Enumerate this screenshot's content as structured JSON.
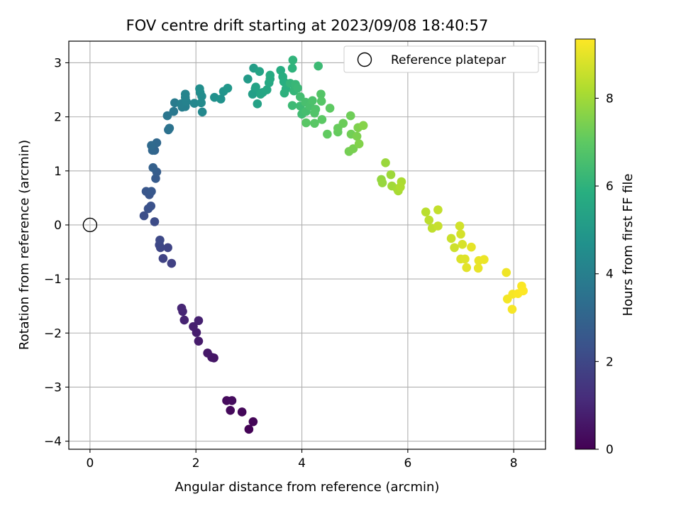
{
  "chart_data": {
    "type": "scatter",
    "title": "FOV centre drift starting at 2023/09/08 18:40:57",
    "xlabel": "Angular distance from reference (arcmin)",
    "ylabel": "Rotation from reference (arcmin)",
    "xlim": [
      -0.4,
      8.6
    ],
    "ylim": [
      -4.15,
      3.4
    ],
    "xticks": [
      0,
      2,
      4,
      6,
      8
    ],
    "yticks": [
      -4,
      -3,
      -2,
      -1,
      0,
      1,
      2,
      3
    ],
    "xtick_labels": [
      "0",
      "2",
      "4",
      "6",
      "8"
    ],
    "ytick_labels": [
      "−4",
      "−3",
      "−2",
      "−1",
      "0",
      "1",
      "2",
      "3"
    ],
    "grid": true,
    "legend": {
      "placement": "top-right",
      "label": "Reference platepar"
    },
    "reference_point": {
      "x": 0,
      "y": 0
    },
    "colormap": "viridis",
    "colorbar": {
      "label": "Hours from first FF file",
      "min": 0,
      "max": 9.35,
      "ticks": [
        0,
        2,
        4,
        6,
        8
      ],
      "tick_labels": [
        "0",
        "2",
        "4",
        "6",
        "8"
      ]
    },
    "points": [
      {
        "x": 3.0,
        "y": -3.78,
        "c": 0.05
      },
      {
        "x": 3.08,
        "y": -3.64,
        "c": 0.1
      },
      {
        "x": 2.87,
        "y": -3.46,
        "c": 0.15
      },
      {
        "x": 2.65,
        "y": -3.43,
        "c": 0.2
      },
      {
        "x": 2.58,
        "y": -3.25,
        "c": 0.25
      },
      {
        "x": 2.68,
        "y": -3.25,
        "c": 0.3
      },
      {
        "x": 2.34,
        "y": -2.46,
        "c": 0.5
      },
      {
        "x": 2.3,
        "y": -2.45,
        "c": 0.55
      },
      {
        "x": 2.22,
        "y": -2.37,
        "c": 0.6
      },
      {
        "x": 2.05,
        "y": -2.15,
        "c": 0.7
      },
      {
        "x": 2.01,
        "y": -1.99,
        "c": 0.75
      },
      {
        "x": 1.95,
        "y": -1.88,
        "c": 0.8
      },
      {
        "x": 2.05,
        "y": -1.77,
        "c": 0.85
      },
      {
        "x": 1.78,
        "y": -1.76,
        "c": 0.9
      },
      {
        "x": 1.75,
        "y": -1.6,
        "c": 0.95
      },
      {
        "x": 1.73,
        "y": -1.54,
        "c": 1.0
      },
      {
        "x": 1.54,
        "y": -0.71,
        "c": 1.8
      },
      {
        "x": 1.38,
        "y": -0.62,
        "c": 1.85
      },
      {
        "x": 1.47,
        "y": -0.42,
        "c": 1.9
      },
      {
        "x": 1.33,
        "y": -0.42,
        "c": 1.95
      },
      {
        "x": 1.31,
        "y": -0.37,
        "c": 2.0
      },
      {
        "x": 1.32,
        "y": -0.28,
        "c": 2.05
      },
      {
        "x": 1.22,
        "y": 0.06,
        "c": 2.15
      },
      {
        "x": 1.02,
        "y": 0.17,
        "c": 2.2
      },
      {
        "x": 1.1,
        "y": 0.3,
        "c": 2.3
      },
      {
        "x": 1.15,
        "y": 0.35,
        "c": 2.35
      },
      {
        "x": 1.12,
        "y": 0.56,
        "c": 2.45
      },
      {
        "x": 1.06,
        "y": 0.62,
        "c": 2.5
      },
      {
        "x": 1.16,
        "y": 0.62,
        "c": 2.55
      },
      {
        "x": 1.24,
        "y": 0.86,
        "c": 2.65
      },
      {
        "x": 1.26,
        "y": 0.98,
        "c": 2.75
      },
      {
        "x": 1.19,
        "y": 1.06,
        "c": 2.85
      },
      {
        "x": 1.22,
        "y": 1.38,
        "c": 3.0
      },
      {
        "x": 1.18,
        "y": 1.38,
        "c": 3.05
      },
      {
        "x": 1.26,
        "y": 1.52,
        "c": 3.15
      },
      {
        "x": 1.16,
        "y": 1.47,
        "c": 3.2
      },
      {
        "x": 1.48,
        "y": 1.76,
        "c": 3.45
      },
      {
        "x": 1.5,
        "y": 1.79,
        "c": 3.55
      },
      {
        "x": 1.46,
        "y": 2.02,
        "c": 3.65
      },
      {
        "x": 1.58,
        "y": 2.1,
        "c": 3.75
      },
      {
        "x": 1.6,
        "y": 2.26,
        "c": 3.85
      },
      {
        "x": 1.74,
        "y": 2.18,
        "c": 3.95
      },
      {
        "x": 1.8,
        "y": 2.19,
        "c": 4.0
      },
      {
        "x": 1.72,
        "y": 2.24,
        "c": 4.05
      },
      {
        "x": 1.82,
        "y": 2.28,
        "c": 4.1
      },
      {
        "x": 1.8,
        "y": 2.36,
        "c": 4.15
      },
      {
        "x": 1.8,
        "y": 2.42,
        "c": 4.2
      },
      {
        "x": 1.97,
        "y": 2.25,
        "c": 4.3
      },
      {
        "x": 2.12,
        "y": 2.09,
        "c": 4.35
      },
      {
        "x": 2.1,
        "y": 2.26,
        "c": 4.4
      },
      {
        "x": 2.11,
        "y": 2.38,
        "c": 4.45
      },
      {
        "x": 2.08,
        "y": 2.45,
        "c": 4.5
      },
      {
        "x": 2.07,
        "y": 2.52,
        "c": 4.55
      },
      {
        "x": 2.35,
        "y": 2.36,
        "c": 4.65
      },
      {
        "x": 2.47,
        "y": 2.33,
        "c": 4.7
      },
      {
        "x": 2.52,
        "y": 2.47,
        "c": 4.8
      },
      {
        "x": 2.6,
        "y": 2.53,
        "c": 4.9
      },
      {
        "x": 2.98,
        "y": 2.7,
        "c": 5.05
      },
      {
        "x": 3.09,
        "y": 2.9,
        "c": 5.15
      },
      {
        "x": 3.07,
        "y": 2.42,
        "c": 5.2
      },
      {
        "x": 3.12,
        "y": 2.52,
        "c": 5.25
      },
      {
        "x": 3.16,
        "y": 2.24,
        "c": 5.3
      },
      {
        "x": 3.13,
        "y": 2.55,
        "c": 5.35
      },
      {
        "x": 3.2,
        "y": 2.84,
        "c": 5.4
      },
      {
        "x": 3.26,
        "y": 2.45,
        "c": 5.45
      },
      {
        "x": 3.22,
        "y": 2.42,
        "c": 5.5
      },
      {
        "x": 3.34,
        "y": 2.5,
        "c": 5.55
      },
      {
        "x": 3.38,
        "y": 2.63,
        "c": 5.6
      },
      {
        "x": 3.4,
        "y": 2.7,
        "c": 5.65
      },
      {
        "x": 3.4,
        "y": 2.77,
        "c": 5.7
      },
      {
        "x": 3.6,
        "y": 2.86,
        "c": 5.75
      },
      {
        "x": 3.64,
        "y": 2.74,
        "c": 5.8
      },
      {
        "x": 3.66,
        "y": 2.65,
        "c": 5.85
      },
      {
        "x": 3.7,
        "y": 2.52,
        "c": 5.9
      },
      {
        "x": 3.67,
        "y": 2.44,
        "c": 5.95
      },
      {
        "x": 3.82,
        "y": 2.9,
        "c": 6.0
      },
      {
        "x": 3.83,
        "y": 3.05,
        "c": 6.05
      },
      {
        "x": 3.78,
        "y": 2.62,
        "c": 6.1
      },
      {
        "x": 3.85,
        "y": 2.48,
        "c": 6.15
      },
      {
        "x": 3.88,
        "y": 2.6,
        "c": 6.2
      },
      {
        "x": 3.92,
        "y": 2.53,
        "c": 6.25
      },
      {
        "x": 3.82,
        "y": 2.21,
        "c": 6.3
      },
      {
        "x": 4.31,
        "y": 2.94,
        "c": 6.3
      },
      {
        "x": 3.97,
        "y": 2.2,
        "c": 6.35
      },
      {
        "x": 4.0,
        "y": 2.05,
        "c": 6.4
      },
      {
        "x": 3.97,
        "y": 2.37,
        "c": 6.45
      },
      {
        "x": 4.08,
        "y": 2.1,
        "c": 6.5
      },
      {
        "x": 4.07,
        "y": 2.27,
        "c": 6.55
      },
      {
        "x": 4.15,
        "y": 2.2,
        "c": 6.6
      },
      {
        "x": 4.2,
        "y": 2.3,
        "c": 6.65
      },
      {
        "x": 4.26,
        "y": 2.14,
        "c": 6.7
      },
      {
        "x": 4.24,
        "y": 2.07,
        "c": 6.75
      },
      {
        "x": 4.36,
        "y": 2.42,
        "c": 6.8
      },
      {
        "x": 4.37,
        "y": 2.29,
        "c": 6.85
      },
      {
        "x": 4.08,
        "y": 1.89,
        "c": 6.9
      },
      {
        "x": 4.24,
        "y": 1.88,
        "c": 6.9
      },
      {
        "x": 4.38,
        "y": 1.95,
        "c": 6.95
      },
      {
        "x": 4.53,
        "y": 2.16,
        "c": 7.0
      },
      {
        "x": 4.48,
        "y": 1.68,
        "c": 7.05
      },
      {
        "x": 4.68,
        "y": 1.72,
        "c": 7.1
      },
      {
        "x": 4.68,
        "y": 1.79,
        "c": 7.15
      },
      {
        "x": 4.78,
        "y": 1.88,
        "c": 7.2
      },
      {
        "x": 4.92,
        "y": 2.02,
        "c": 7.25
      },
      {
        "x": 4.93,
        "y": 1.68,
        "c": 7.3
      },
      {
        "x": 4.89,
        "y": 1.36,
        "c": 7.35
      },
      {
        "x": 4.97,
        "y": 1.41,
        "c": 7.4
      },
      {
        "x": 5.04,
        "y": 1.64,
        "c": 7.45
      },
      {
        "x": 5.06,
        "y": 1.8,
        "c": 7.5
      },
      {
        "x": 5.08,
        "y": 1.5,
        "c": 7.55
      },
      {
        "x": 5.16,
        "y": 1.84,
        "c": 7.6
      },
      {
        "x": 5.5,
        "y": 0.84,
        "c": 7.8
      },
      {
        "x": 5.52,
        "y": 0.78,
        "c": 7.85
      },
      {
        "x": 5.58,
        "y": 1.15,
        "c": 7.9
      },
      {
        "x": 5.68,
        "y": 0.93,
        "c": 7.95
      },
      {
        "x": 5.7,
        "y": 0.72,
        "c": 8.0
      },
      {
        "x": 5.8,
        "y": 0.67,
        "c": 8.05
      },
      {
        "x": 5.82,
        "y": 0.63,
        "c": 8.1
      },
      {
        "x": 5.88,
        "y": 0.8,
        "c": 8.15
      },
      {
        "x": 5.86,
        "y": 0.7,
        "c": 8.2
      },
      {
        "x": 6.34,
        "y": 0.24,
        "c": 8.35
      },
      {
        "x": 6.4,
        "y": 0.09,
        "c": 8.4
      },
      {
        "x": 6.46,
        "y": -0.06,
        "c": 8.45
      },
      {
        "x": 6.57,
        "y": 0.28,
        "c": 8.5
      },
      {
        "x": 6.57,
        "y": -0.02,
        "c": 8.55
      },
      {
        "x": 6.82,
        "y": -0.25,
        "c": 8.6
      },
      {
        "x": 6.88,
        "y": -0.42,
        "c": 8.65
      },
      {
        "x": 6.98,
        "y": -0.02,
        "c": 8.7
      },
      {
        "x": 7.0,
        "y": -0.17,
        "c": 8.75
      },
      {
        "x": 7.03,
        "y": -0.36,
        "c": 8.8
      },
      {
        "x": 7.0,
        "y": -0.63,
        "c": 8.85
      },
      {
        "x": 7.08,
        "y": -0.63,
        "c": 8.9
      },
      {
        "x": 7.11,
        "y": -0.79,
        "c": 8.95
      },
      {
        "x": 7.2,
        "y": -0.41,
        "c": 9.0
      },
      {
        "x": 7.33,
        "y": -0.8,
        "c": 9.05
      },
      {
        "x": 7.34,
        "y": -0.66,
        "c": 9.05
      },
      {
        "x": 7.44,
        "y": -0.64,
        "c": 9.1
      },
      {
        "x": 7.86,
        "y": -0.88,
        "c": 9.15
      },
      {
        "x": 7.88,
        "y": -1.37,
        "c": 9.2
      },
      {
        "x": 7.97,
        "y": -1.56,
        "c": 9.25
      },
      {
        "x": 7.98,
        "y": -1.28,
        "c": 9.25
      },
      {
        "x": 8.08,
        "y": -1.27,
        "c": 9.3
      },
      {
        "x": 8.15,
        "y": -1.13,
        "c": 9.3
      },
      {
        "x": 8.18,
        "y": -1.22,
        "c": 9.35
      }
    ]
  }
}
